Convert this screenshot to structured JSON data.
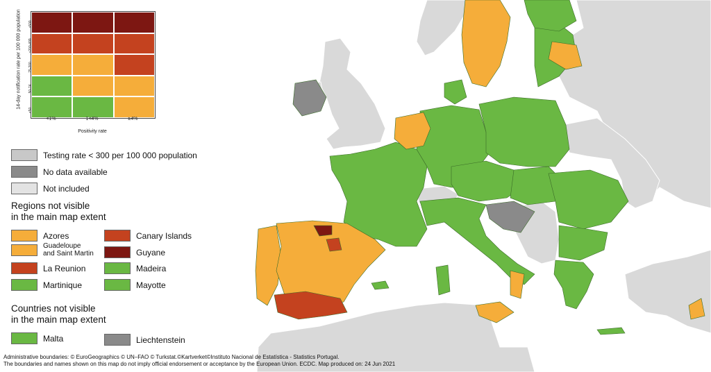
{
  "colors": {
    "sea": "#ffffff",
    "non_eu_land": "#d9d9d9",
    "green": "#6ab843",
    "orange": "#f5ad3a",
    "red": "#c4421f",
    "darkred": "#7d1712",
    "grey": "#8a8a8a",
    "lightgrey": "#dcdcdc"
  },
  "matrix": {
    "ylabel": "14-day notification rate per 100 000 population",
    "row_labels": [
      "≥500",
      ">200-499",
      "75-200",
      "50-74",
      "<50"
    ],
    "col_labels": [
      "<1%",
      "1<4%",
      "≥4%"
    ],
    "xlabel": "Positivity rate",
    "cells": [
      [
        "darkred",
        "darkred",
        "darkred"
      ],
      [
        "red",
        "red",
        "red"
      ],
      [
        "orange",
        "orange",
        "red"
      ],
      [
        "green",
        "orange",
        "orange"
      ],
      [
        "green",
        "green",
        "orange"
      ]
    ]
  },
  "legend": {
    "items": [
      {
        "color": "#c8c8c8",
        "label": "Testing rate < 300 per 100 000 population"
      },
      {
        "color": "#8a8a8a",
        "label": "No data available"
      },
      {
        "color": "#e3e3e3",
        "label": "Not included"
      }
    ],
    "regions_heading_1": "Regions not visible",
    "regions_heading_2": "in the main map extent",
    "regions": [
      {
        "color": "#f5ad3a",
        "label": "Azores"
      },
      {
        "color": "#c4421f",
        "label": "Canary Islands"
      },
      {
        "color": "#f5ad3a",
        "label": "Guadeloupe\nand Saint Martin"
      },
      {
        "color": "#7d1712",
        "label": "Guyane"
      },
      {
        "color": "#c4421f",
        "label": "La Reunion"
      },
      {
        "color": "#6ab843",
        "label": "Madeira"
      },
      {
        "color": "#6ab843",
        "label": "Martinique"
      },
      {
        "color": "#6ab843",
        "label": "Mayotte"
      }
    ],
    "countries_heading_1": "Countries not visible",
    "countries_heading_2": "in the main map extent",
    "countries": [
      {
        "color": "#6ab843",
        "label": "Malta"
      },
      {
        "color": "#8a8a8a",
        "label": "Liechtenstein"
      }
    ]
  },
  "footer": {
    "line1": "Administrative boundaries: © EuroGeographics © UN–FAO © Turkstat.©Kartverket©Instituto Nacional de Estatística - Statistics Portugal.",
    "line2": "The boundaries and names shown on this map do not imply official endorsement or acceptance by the European Union. ECDC. Map produced on: 24 Jun 2021"
  }
}
